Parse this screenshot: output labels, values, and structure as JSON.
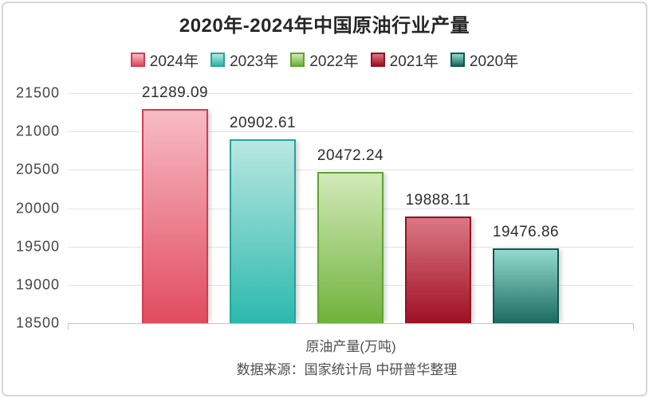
{
  "title": "2020年-2024年中国原油行业产量",
  "legend": {
    "items": [
      {
        "label": "2024年",
        "fill_top": "#f7bcc4",
        "fill_bottom": "#e14b60",
        "border": "#d23c52"
      },
      {
        "label": "2023年",
        "fill_top": "#b9e7e1",
        "fill_bottom": "#2db9ae",
        "border": "#29a29a"
      },
      {
        "label": "2022年",
        "fill_top": "#d2eab9",
        "fill_bottom": "#70b23c",
        "border": "#5fa332"
      },
      {
        "label": "2021年",
        "fill_top": "#db7884",
        "fill_bottom": "#9e1023",
        "border": "#8e1425"
      },
      {
        "label": "2020年",
        "fill_top": "#93dacd",
        "fill_bottom": "#1c6b60",
        "border": "#14574e"
      }
    ]
  },
  "chart_data": {
    "type": "bar",
    "title": "2020年-2024年中国原油行业产量",
    "categories": [
      "2024年",
      "2023年",
      "2022年",
      "2021年",
      "2020年"
    ],
    "values": [
      21289.09,
      20902.61,
      20472.24,
      19888.11,
      19476.86
    ],
    "value_labels": [
      "21289.09",
      "20902.61",
      "20472.24",
      "19888.11",
      "19476.86"
    ],
    "xlabel": "原油产量(万吨)",
    "ylabel": "",
    "ylim": [
      18500,
      21500
    ],
    "yticks": [
      18500,
      19000,
      19500,
      20000,
      20500,
      21000,
      21500
    ],
    "grid": true,
    "legend_position": "top",
    "source": "数据来源：国家统计局 中研普华整理"
  },
  "footer": {
    "xlabel": "原油产量(万吨)",
    "source": "数据来源：国家统计局 中研普华整理"
  }
}
